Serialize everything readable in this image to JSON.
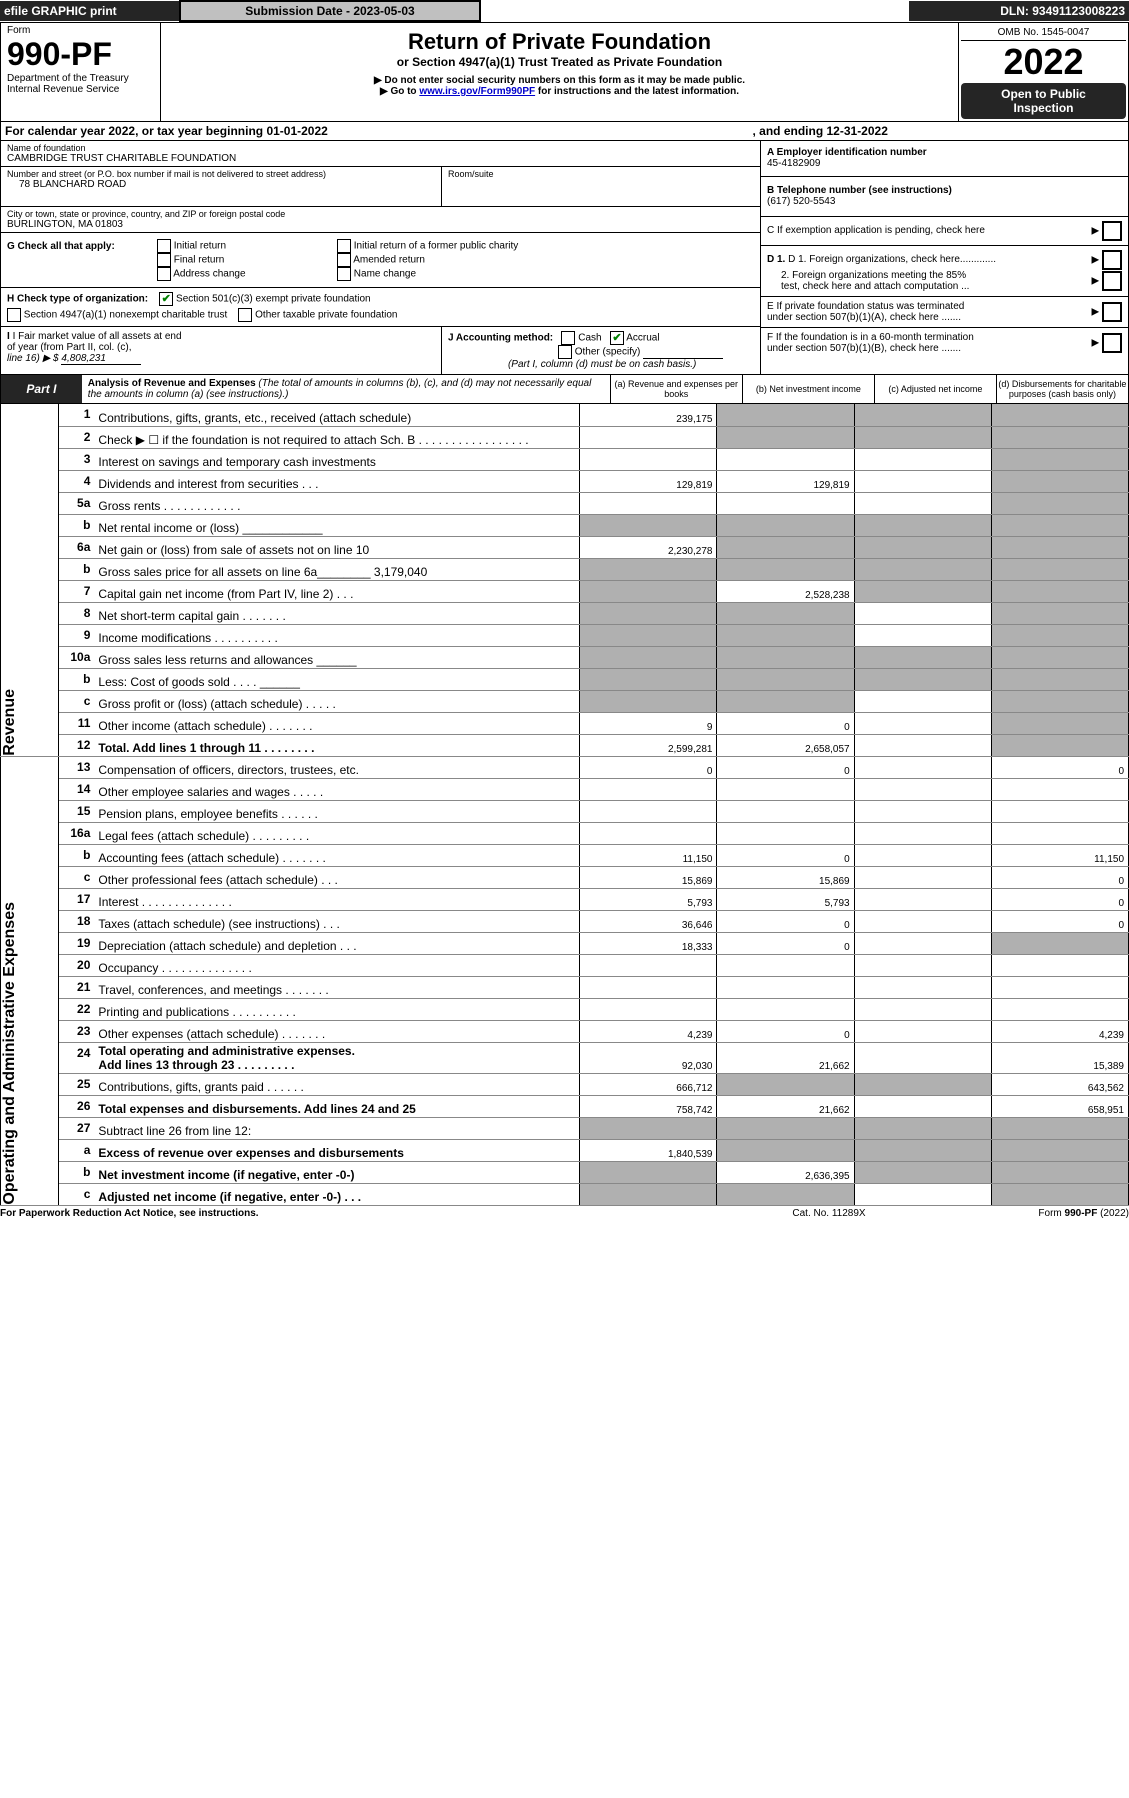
{
  "top": {
    "efile": "efile GRAPHIC print",
    "submission": "Submission Date - 2023-05-03",
    "dln": "DLN: 93491123008223"
  },
  "hdr": {
    "form": "Form",
    "formno": "990-PF",
    "dept": "Department of the Treasury\nInternal Revenue Service",
    "title": "Return of Private Foundation",
    "subtitle": "or Section 4947(a)(1) Trust Treated as Private Foundation",
    "warn1": "▶ Do not enter social security numbers on this form as it may be made public.",
    "warn2a": "▶ Go to ",
    "warn2link": "www.irs.gov/Form990PF",
    "warn2b": " for instructions and the latest information.",
    "omb": "OMB No. 1545-0047",
    "year": "2022",
    "open1": "Open to Public",
    "open2": "Inspection"
  },
  "cal": {
    "line": "For calendar year 2022, or tax year beginning 01-01-2022",
    "end": ", and ending 12-31-2022"
  },
  "ent": {
    "name_lbl": "Name of foundation",
    "name": "CAMBRIDGE TRUST CHARITABLE FOUNDATION",
    "addr_lbl": "Number and street (or P.O. box number if mail is not delivered to street address)",
    "addr": "78 BLANCHARD ROAD",
    "room_lbl": "Room/suite",
    "city_lbl": "City or town, state or province, country, and ZIP or foreign postal code",
    "city": "BURLINGTON, MA  01803",
    "ein_lbl": "A Employer identification number",
    "ein": "45-4182909",
    "tel_lbl": "B Telephone number (see instructions)",
    "tel": "(617) 520-5543",
    "c": "C If exemption application is pending, check here",
    "d1": "D 1. Foreign organizations, check here.............",
    "d2": "2. Foreign organizations meeting the 85%\n   test, check here and attach computation ...",
    "e": "E  If private foundation status was terminated\n   under section 507(b)(1)(A), check here .......",
    "f": "F  If the foundation is in a 60-month termination\n   under section 507(b)(1)(B), check here .......",
    "g": "G Check all that apply:",
    "g1": "Initial return",
    "g2": "Initial return of a former public charity",
    "g3": "Final return",
    "g4": "Amended return",
    "g5": "Address change",
    "g6": "Name change",
    "h": "H Check type of organization:",
    "h1": "Section 501(c)(3) exempt private foundation",
    "h2": "Section 4947(a)(1) nonexempt charitable trust",
    "h3": "Other taxable private foundation",
    "i1": "I Fair market value of all assets at end\nof year (from Part II, col. (c),",
    "i2": "line 16) ▶ $",
    "ival": "4,808,231",
    "j": "J Accounting method:",
    "j1": "Cash",
    "j2": "Accrual",
    "j3": "Other (specify)",
    "j4": "(Part I, column (d) must be on cash basis.)"
  },
  "p1": {
    "hdr": "Part I",
    "title": "Analysis of Revenue and Expenses",
    "sub": " (The total of amounts in columns (b), (c), and (d) may not necessarily equal the amounts in column (a) (see instructions).)",
    "ca": "(a)    Revenue and expenses per books",
    "cb": "(b)    Net investment income",
    "cc": "(c)   Adjusted net income",
    "cd": "(d)  Disbursements for charitable purposes (cash basis only)",
    "revenue": "Revenue",
    "expenses": "Operating and Administrative Expenses"
  },
  "rows": [
    {
      "n": "1",
      "t": "Contributions, gifts, grants, etc., received (attach schedule)",
      "a": "239,175",
      "b": "",
      "c": "",
      "d": "",
      "bb": "1",
      "bc": "1",
      "bd": "1"
    },
    {
      "n": "2",
      "t": "Check ▶ ☐ if the foundation is not required to attach Sch. B   .  .  .  .  .  .  .  .  .  .  .  .  .  .  .  .  .",
      "a": "",
      "b": "",
      "c": "",
      "d": "",
      "bb": "1",
      "bc": "1",
      "bd": "1"
    },
    {
      "n": "3",
      "t": "Interest on savings and temporary cash investments",
      "a": "",
      "b": "",
      "c": "",
      "d": "",
      "bd": "1"
    },
    {
      "n": "4",
      "t": "Dividends and interest from securities     .    .    .",
      "a": "129,819",
      "b": "129,819",
      "c": "",
      "d": "",
      "bd": "1"
    },
    {
      "n": "5a",
      "t": "Gross rents     .    .    .    .    .    .    .    .    .    .    .    .",
      "a": "",
      "b": "",
      "c": "",
      "d": "",
      "bd": "1"
    },
    {
      "n": "b",
      "t": "Net rental income or (loss)  ____________",
      "a": "",
      "b": "",
      "c": "",
      "d": "",
      "ba": "1",
      "bb": "1",
      "bc": "1",
      "bd": "1",
      "nb": "1"
    },
    {
      "n": "6a",
      "t": "Net gain or (loss) from sale of assets not on line 10",
      "a": "2,230,278",
      "b": "",
      "c": "",
      "d": "",
      "bb": "1",
      "bc": "1",
      "bd": "1"
    },
    {
      "n": "b",
      "t": "Gross sales price for all assets on line 6a________  3,179,040",
      "a": "",
      "b": "",
      "c": "",
      "d": "",
      "ba": "1",
      "bb": "1",
      "bc": "1",
      "bd": "1",
      "nb": "1"
    },
    {
      "n": "7",
      "t": "Capital gain net income (from Part IV, line 2)    .    .    .",
      "a": "",
      "b": "2,528,238",
      "c": "",
      "d": "",
      "ba": "1",
      "bc": "1",
      "bd": "1"
    },
    {
      "n": "8",
      "t": "Net short-term capital gain    .    .    .    .    .    .    .",
      "a": "",
      "b": "",
      "c": "",
      "d": "",
      "ba": "1",
      "bb": "1",
      "bd": "1"
    },
    {
      "n": "9",
      "t": "Income modifications  .    .    .    .    .    .    .    .    .    .",
      "a": "",
      "b": "",
      "c": "",
      "d": "",
      "ba": "1",
      "bb": "1",
      "bd": "1"
    },
    {
      "n": "10a",
      "t": "Gross sales less returns and allowances  ______",
      "a": "",
      "b": "",
      "c": "",
      "d": "",
      "ba": "1",
      "bb": "1",
      "bc": "1",
      "bd": "1",
      "nb": "1"
    },
    {
      "n": "b",
      "t": "Less: Cost of goods sold     .    .    .    .  ______",
      "a": "",
      "b": "",
      "c": "",
      "d": "",
      "ba": "1",
      "bb": "1",
      "bc": "1",
      "bd": "1",
      "nb": "1"
    },
    {
      "n": "c",
      "t": "Gross profit or (loss) (attach schedule)      .    .    .    .    .",
      "a": "",
      "b": "",
      "c": "",
      "d": "",
      "ba": "1",
      "bb": "1",
      "bd": "1"
    },
    {
      "n": "11",
      "t": "Other income (attach schedule)    .    .    .    .    .    .    .",
      "a": "9",
      "b": "0",
      "c": "",
      "d": "",
      "bd": "1"
    },
    {
      "n": "12",
      "t": "Total. Add lines 1 through 11   .    .    .    .    .    .    .    .",
      "a": "2,599,281",
      "b": "2,658,057",
      "c": "",
      "d": "",
      "bold": "1",
      "bd": "1"
    },
    {
      "n": "13",
      "t": "Compensation of officers, directors, trustees, etc.",
      "a": "0",
      "b": "0",
      "c": "",
      "d": "0"
    },
    {
      "n": "14",
      "t": "Other employee salaries and wages    .    .    .    .    .",
      "a": "",
      "b": "",
      "c": "",
      "d": ""
    },
    {
      "n": "15",
      "t": "Pension plans, employee benefits   .    .    .    .    .    .",
      "a": "",
      "b": "",
      "c": "",
      "d": ""
    },
    {
      "n": "16a",
      "t": "Legal fees (attach schedule)  .    .    .    .    .    .    .    .    .",
      "a": "",
      "b": "",
      "c": "",
      "d": ""
    },
    {
      "n": "b",
      "t": "Accounting fees (attach schedule)  .    .    .    .    .    .    .",
      "a": "11,150",
      "b": "0",
      "c": "",
      "d": "11,150"
    },
    {
      "n": "c",
      "t": "Other professional fees (attach schedule)     .    .    .",
      "a": "15,869",
      "b": "15,869",
      "c": "",
      "d": "0"
    },
    {
      "n": "17",
      "t": "Interest  .    .    .    .    .    .    .    .    .    .    .    .    .    .",
      "a": "5,793",
      "b": "5,793",
      "c": "",
      "d": "0"
    },
    {
      "n": "18",
      "t": "Taxes (attach schedule) (see instructions)       .    .    .",
      "a": "36,646",
      "b": "0",
      "c": "",
      "d": "0"
    },
    {
      "n": "19",
      "t": "Depreciation (attach schedule) and depletion     .    .    .",
      "a": "18,333",
      "b": "0",
      "c": "",
      "d": "",
      "bd": "1"
    },
    {
      "n": "20",
      "t": "Occupancy  .    .    .    .    .    .    .    .    .    .    .    .    .    .",
      "a": "",
      "b": "",
      "c": "",
      "d": ""
    },
    {
      "n": "21",
      "t": "Travel, conferences, and meetings  .    .    .    .    .    .    .",
      "a": "",
      "b": "",
      "c": "",
      "d": ""
    },
    {
      "n": "22",
      "t": "Printing and publications  .    .    .    .    .    .    .    .    .    .",
      "a": "",
      "b": "",
      "c": "",
      "d": ""
    },
    {
      "n": "23",
      "t": "Other expenses (attach schedule)  .    .    .    .    .    .    .",
      "a": "4,239",
      "b": "0",
      "c": "",
      "d": "4,239"
    },
    {
      "n": "24",
      "t": "Total operating and administrative expenses.\nAdd lines 13 through 23   .    .    .    .    .    .    .    .    .",
      "a": "92,030",
      "b": "21,662",
      "c": "",
      "d": "15,389",
      "bold": "1"
    },
    {
      "n": "25",
      "t": "Contributions, gifts, grants paid      .    .    .    .    .    .",
      "a": "666,712",
      "b": "",
      "c": "",
      "d": "643,562",
      "bb": "1",
      "bc": "1"
    },
    {
      "n": "26",
      "t": "Total expenses and disbursements. Add lines 24 and 25",
      "a": "758,742",
      "b": "21,662",
      "c": "",
      "d": "658,951",
      "bold": "1"
    },
    {
      "n": "27",
      "t": "Subtract line 26 from line 12:",
      "a": "",
      "b": "",
      "c": "",
      "d": "",
      "ba": "1",
      "bb": "1",
      "bc": "1",
      "bd": "1",
      "nb": "1"
    },
    {
      "n": "a",
      "t": "Excess of revenue over expenses and disbursements",
      "a": "1,840,539",
      "b": "",
      "c": "",
      "d": "",
      "bold": "1",
      "bb": "1",
      "bc": "1",
      "bd": "1"
    },
    {
      "n": "b",
      "t": "Net investment income (if negative, enter -0-)",
      "a": "",
      "b": "2,636,395",
      "c": "",
      "d": "",
      "bold": "1",
      "ba": "1",
      "bc": "1",
      "bd": "1"
    },
    {
      "n": "c",
      "t": "Adjusted net income (if negative, enter -0-)    .    .    .",
      "a": "",
      "b": "",
      "c": "",
      "d": "",
      "bold": "1",
      "ba": "1",
      "bb": "1",
      "bd": "1"
    }
  ],
  "ftr": {
    "left": "For Paperwork Reduction Act Notice, see instructions.",
    "mid": "Cat. No. 11289X",
    "right": "Form 990-PF (2022)"
  }
}
